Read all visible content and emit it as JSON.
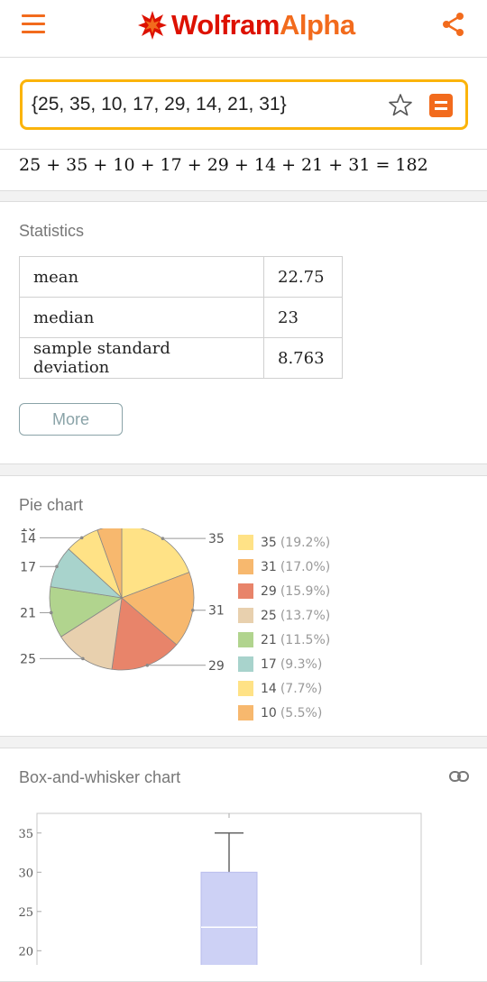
{
  "header": {
    "logo_text_main": "Wolfram",
    "logo_text_accent": "Alpha",
    "brand_color": "#dd1100",
    "accent_color": "#f26b1d"
  },
  "search": {
    "value": "{25, 35, 10, 17, 29, 14, 21, 31}",
    "border_color": "#fbb40b"
  },
  "result": {
    "sum_text": "25 + 35 + 10 + 17 + 29 + 14 + 21 + 31 = 182"
  },
  "statistics": {
    "title": "Statistics",
    "rows": [
      {
        "label": "mean",
        "value": "22.75"
      },
      {
        "label": "median",
        "value": "23"
      },
      {
        "label": "sample standard deviation",
        "value": "8.763"
      }
    ],
    "more_label": "More"
  },
  "pie": {
    "title": "Pie chart"
  },
  "box": {
    "title": "Box-and-whisker chart"
  },
  "chart_data": [
    {
      "type": "pie",
      "title": "Pie chart",
      "slices": [
        {
          "label": "35",
          "value": 35,
          "percent": "(19.2%)",
          "color": "#ffe286"
        },
        {
          "label": "31",
          "value": 31,
          "percent": "(17.0%)",
          "color": "#f7b86e"
        },
        {
          "label": "29",
          "value": 29,
          "percent": "(15.9%)",
          "color": "#e8846a"
        },
        {
          "label": "25",
          "value": 25,
          "percent": "(13.7%)",
          "color": "#e8d0ae"
        },
        {
          "label": "21",
          "value": 21,
          "percent": "(11.5%)",
          "color": "#b1d48e"
        },
        {
          "label": "17",
          "value": 17,
          "percent": "(9.3%)",
          "color": "#a8d3cc"
        },
        {
          "label": "14",
          "value": 14,
          "percent": "(7.7%)",
          "color": "#ffe286"
        },
        {
          "label": "10",
          "value": 10,
          "percent": "(5.5%)",
          "color": "#f7b86e"
        }
      ],
      "legend": "right"
    },
    {
      "type": "box",
      "title": "Box-and-whisker chart",
      "y_ticks": [
        20,
        25,
        30,
        35
      ],
      "ylim": [
        18.2,
        37.5
      ],
      "max": 35,
      "q3": 30,
      "median": 23,
      "box_color": "#cdd1f5",
      "whisker_color": "#666666"
    }
  ]
}
